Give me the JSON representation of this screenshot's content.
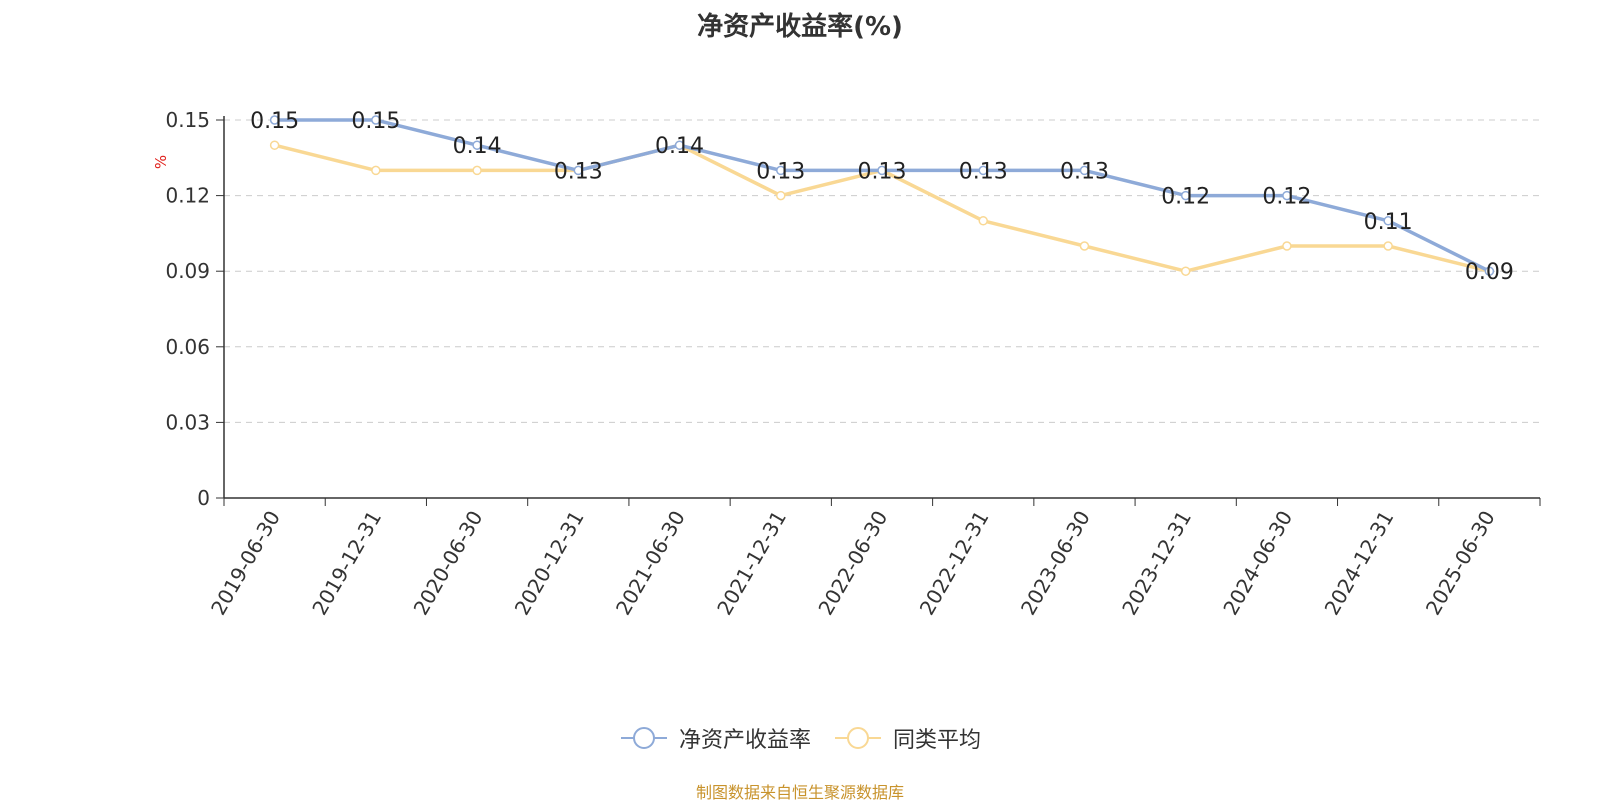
{
  "chart_data": {
    "type": "line",
    "title": "净资产收益率(%)",
    "ylabel": "%",
    "xlabel": "",
    "categories": [
      "2019-06-30",
      "2019-12-31",
      "2020-06-30",
      "2020-12-31",
      "2021-06-30",
      "2021-12-31",
      "2022-06-30",
      "2022-12-31",
      "2023-06-30",
      "2023-12-31",
      "2024-06-30",
      "2024-12-31",
      "2025-06-30"
    ],
    "ylim": [
      0,
      0.15
    ],
    "yticks": [
      "0",
      "0.03",
      "0.06",
      "0.09",
      "0.12",
      "0.15"
    ],
    "grid": true,
    "legend_position": "bottom",
    "series": [
      {
        "name": "净资产收益率",
        "color": "#8eaad8",
        "show_labels": true,
        "values": [
          0.15,
          0.15,
          0.14,
          0.13,
          0.14,
          0.13,
          0.13,
          0.13,
          0.13,
          0.12,
          0.12,
          0.11,
          0.09
        ],
        "labels": [
          "0.15",
          "0.15",
          "0.14",
          "0.13",
          "0.14",
          "0.13",
          "0.13",
          "0.13",
          "0.13",
          "0.12",
          "0.12",
          "0.11",
          "0.09"
        ]
      },
      {
        "name": "同类平均",
        "color": "#f9d894",
        "show_labels": false,
        "values": [
          0.14,
          0.13,
          0.13,
          0.13,
          0.14,
          0.12,
          0.13,
          0.11,
          0.1,
          0.09,
          0.1,
          0.1,
          0.09
        ]
      }
    ]
  },
  "legend": [
    {
      "label": "净资产收益率",
      "color": "#8eaad8"
    },
    {
      "label": "同类平均",
      "color": "#f9d894"
    }
  ],
  "source": "制图数据来自恒生聚源数据库"
}
